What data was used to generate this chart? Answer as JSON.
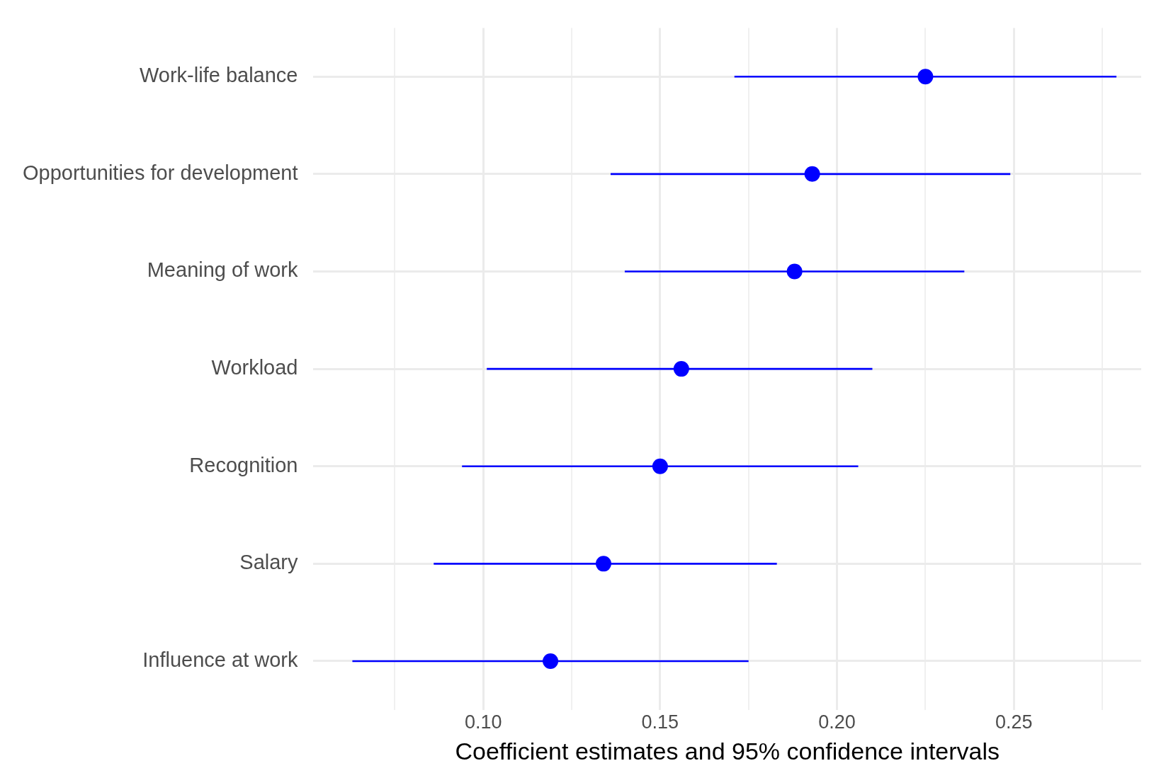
{
  "chart_data": {
    "type": "scatter",
    "orientation": "horizontal",
    "xlabel": "Coefficient estimates and 95% confidence intervals",
    "categories": [
      "Work-life balance",
      "Opportunities for development",
      "Meaning of work",
      "Workload",
      "Recognition",
      "Salary",
      "Influence at work"
    ],
    "values": [
      0.225,
      0.193,
      0.188,
      0.156,
      0.15,
      0.134,
      0.119
    ],
    "errors": [
      [
        0.171,
        0.279
      ],
      [
        0.136,
        0.249
      ],
      [
        0.14,
        0.236
      ],
      [
        0.101,
        0.21
      ],
      [
        0.094,
        0.206
      ],
      [
        0.086,
        0.183
      ],
      [
        0.063,
        0.175
      ]
    ],
    "color": "#0000ff",
    "marker": "circle",
    "xlim": [
      0.052,
      0.286
    ],
    "xticks": [
      {
        "value": 0.075,
        "label": null
      },
      {
        "value": 0.1,
        "label": "0.10"
      },
      {
        "value": 0.125,
        "label": null
      },
      {
        "value": 0.15,
        "label": "0.15"
      },
      {
        "value": 0.175,
        "label": null
      },
      {
        "value": 0.2,
        "label": "0.20"
      },
      {
        "value": 0.225,
        "label": null
      },
      {
        "value": 0.25,
        "label": "0.25"
      },
      {
        "value": 0.275,
        "label": null
      }
    ],
    "grid": true
  }
}
